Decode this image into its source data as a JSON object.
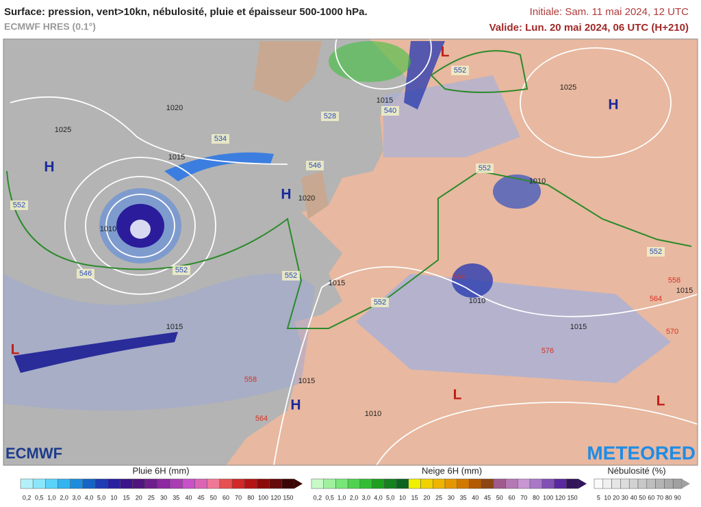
{
  "header": {
    "title": "Surface: pression, vent>10kn, nébulosité, pluie et épaisseur 500-1000 hPa.",
    "model": "ECMWF HRES (0.1°)",
    "initial": "Initiale: Sam. 11 mai 2024, 12 UTC",
    "valid": "Valide: Lun. 20 mai 2024, 06 UTC (H+210)"
  },
  "map": {
    "pressure_centers": [
      "H",
      "H",
      "H",
      "H",
      "L",
      "L",
      "L",
      "L"
    ],
    "isobar_labels": [
      "1020",
      "1025",
      "1015",
      "1010",
      "1020",
      "1025",
      "1015",
      "1010",
      "1015",
      "1015",
      "1015",
      "1010",
      "1010",
      "1015",
      "1015"
    ],
    "thickness_labels": [
      "552",
      "552",
      "552",
      "552",
      "552",
      "552",
      "552",
      "534",
      "528",
      "546",
      "546",
      "540",
      "558",
      "564",
      "564",
      "570",
      "576",
      "558",
      "564"
    ]
  },
  "logos": {
    "left": "ECMWF",
    "right": "METEORED"
  },
  "legends": [
    {
      "title": "Pluie 6H (mm)",
      "labels": [
        "0,2",
        "0,5",
        "1,0",
        "2,0",
        "3,0",
        "4,0",
        "5,0",
        "10",
        "15",
        "20",
        "25",
        "30",
        "35",
        "40",
        "45",
        "50",
        "60",
        "70",
        "80",
        "100",
        "120",
        "150"
      ],
      "colors": [
        "#b4f0fa",
        "#8ce6fa",
        "#5ad2fa",
        "#32b4f0",
        "#1e8cdc",
        "#1464c8",
        "#1e3cb4",
        "#2820a0",
        "#3c148c",
        "#50147d",
        "#6e1e8c",
        "#8c28a0",
        "#aa3cb4",
        "#c850c8",
        "#dc64b4",
        "#f07896",
        "#e65050",
        "#d22828",
        "#b41414",
        "#8c0a0a",
        "#640a0a",
        "#3c0505"
      ]
    },
    {
      "title": "Neige 6H (mm)",
      "labels": [
        "0,2",
        "0,5",
        "1,0",
        "2,0",
        "3,0",
        "4,0",
        "5,0",
        "10",
        "15",
        "20",
        "25",
        "30",
        "35",
        "40",
        "45",
        "50",
        "60",
        "70",
        "80",
        "100",
        "120",
        "150"
      ],
      "colors": [
        "#c8fac8",
        "#a0f0a0",
        "#78e678",
        "#50d250",
        "#32be32",
        "#1ea01e",
        "#14821e",
        "#0a641e",
        "#f0f000",
        "#f0d200",
        "#f0b400",
        "#e69600",
        "#d27800",
        "#b45a00",
        "#8c4614",
        "#a05a8c",
        "#b478b4",
        "#c896d2",
        "#aa78c8",
        "#8250b4",
        "#5a28a0",
        "#32145a"
      ]
    },
    {
      "title": "Nébulosité (%)",
      "labels": [
        "5",
        "10",
        "20",
        "30",
        "40",
        "50",
        "60",
        "70",
        "80",
        "90"
      ],
      "colors": [
        "#fafafa",
        "#f0f0f0",
        "#e6e6e6",
        "#dcdcdc",
        "#d2d2d2",
        "#c8c8c8",
        "#bebebe",
        "#b4b4b4",
        "#aaaaaa",
        "#a0a0a0"
      ]
    }
  ]
}
